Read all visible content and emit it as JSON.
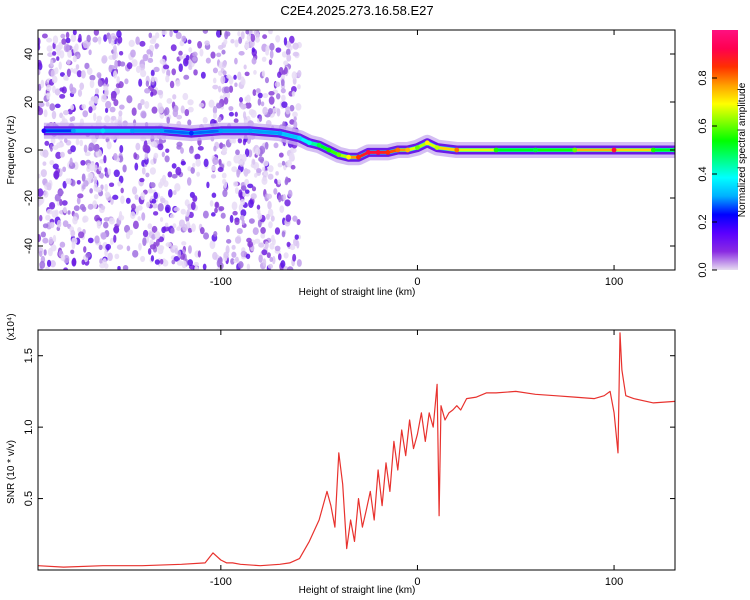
{
  "title": "C2E4.2025.273.16.58.E27",
  "chart_data": [
    {
      "type": "heatmap",
      "name": "spectrogram",
      "title": "C2E4.2025.273.16.58.E27",
      "xlabel": "Height of straight line (km)",
      "ylabel": "Frequency (Hz)",
      "xlim": [
        -193,
        131
      ],
      "ylim": [
        -50,
        50
      ],
      "xticks": [
        -100,
        0,
        100
      ],
      "yticks": [
        -40,
        -20,
        0,
        20,
        40
      ],
      "xtick_labels": [
        "-100",
        "0",
        "100"
      ],
      "ytick_labels": [
        "-40",
        "-20",
        "0",
        "20",
        "40"
      ],
      "trace": {
        "x": [
          -190,
          -175,
          -160,
          -145,
          -130,
          -115,
          -100,
          -85,
          -70,
          -60,
          -55,
          -50,
          -45,
          -40,
          -35,
          -30,
          -25,
          -20,
          -15,
          -10,
          -5,
          0,
          5,
          10,
          20,
          40,
          60,
          80,
          100,
          120,
          131
        ],
        "freq": [
          8,
          8,
          8,
          8,
          8,
          7,
          8,
          8,
          7,
          5,
          3,
          2,
          0,
          -2,
          -3,
          -3,
          -1,
          -1,
          -1,
          0,
          0,
          1,
          3,
          1,
          0,
          0,
          0,
          0,
          0,
          0,
          0
        ],
        "amplitude": [
          0.2,
          0.3,
          0.35,
          0.3,
          0.3,
          0.25,
          0.3,
          0.3,
          0.3,
          0.35,
          0.4,
          0.5,
          0.55,
          0.6,
          0.7,
          0.85,
          0.9,
          0.9,
          0.85,
          0.8,
          0.75,
          0.6,
          0.7,
          0.65,
          0.8,
          0.55,
          0.5,
          0.6,
          0.9,
          0.55,
          0.5
        ]
      },
      "colorbar": {
        "label": "Normalized spectral amplitude",
        "range": [
          0,
          1
        ],
        "ticks": [
          0.0,
          0.2,
          0.4,
          0.6,
          0.8
        ],
        "tick_labels": [
          "0.0",
          "0.2",
          "0.4",
          "0.6",
          "0.8"
        ],
        "colors": [
          "#e6dcf0",
          "#8a2be2",
          "#5a00ff",
          "#0000ff",
          "#00b0ff",
          "#00ffff",
          "#00ff80",
          "#00ff00",
          "#80ff00",
          "#ffff00",
          "#ffa000",
          "#ff3000",
          "#ff0050",
          "#ff1080"
        ]
      }
    },
    {
      "type": "line",
      "name": "snr",
      "title": "",
      "xlabel": "Height of straight line (km)",
      "ylabel": "SNR (10 * v/v)",
      "y_multiplier": "(x10⁴)",
      "xlim": [
        -193,
        131
      ],
      "ylim": [
        0,
        1.68
      ],
      "xticks": [
        -100,
        0,
        100
      ],
      "yticks": [
        0.5,
        1.0,
        1.5
      ],
      "xtick_labels": [
        "-100",
        "0",
        "100"
      ],
      "ytick_labels": [
        "0.5",
        "1.0",
        "1.5"
      ],
      "color": "#e8322e",
      "series": [
        {
          "name": "SNR",
          "x": [
            -193,
            -180,
            -160,
            -140,
            -120,
            -108,
            -104,
            -100,
            -97,
            -94,
            -90,
            -80,
            -70,
            -65,
            -60,
            -55,
            -50,
            -46,
            -44,
            -42,
            -40,
            -38,
            -36,
            -34,
            -32,
            -30,
            -28,
            -26,
            -24,
            -22,
            -20,
            -18,
            -16,
            -14,
            -12,
            -10,
            -8,
            -6,
            -4,
            -2,
            0,
            2,
            4,
            6,
            8,
            10,
            11,
            12,
            14,
            16,
            18,
            20,
            22,
            25,
            30,
            35,
            40,
            50,
            60,
            70,
            80,
            90,
            95,
            98,
            100,
            102,
            103,
            104,
            106,
            110,
            120,
            131
          ],
          "y": [
            0.03,
            0.02,
            0.03,
            0.03,
            0.04,
            0.05,
            0.12,
            0.07,
            0.05,
            0.05,
            0.04,
            0.03,
            0.04,
            0.05,
            0.08,
            0.2,
            0.35,
            0.55,
            0.45,
            0.3,
            0.82,
            0.6,
            0.15,
            0.35,
            0.2,
            0.5,
            0.3,
            0.42,
            0.55,
            0.35,
            0.7,
            0.45,
            0.75,
            0.55,
            0.9,
            0.7,
            0.98,
            0.8,
            1.05,
            0.85,
            0.95,
            1.1,
            0.9,
            1.1,
            1.0,
            1.3,
            0.38,
            1.15,
            1.05,
            1.1,
            1.12,
            1.15,
            1.12,
            1.2,
            1.21,
            1.24,
            1.24,
            1.25,
            1.23,
            1.22,
            1.21,
            1.2,
            1.22,
            1.25,
            1.1,
            0.82,
            1.66,
            1.4,
            1.22,
            1.2,
            1.17,
            1.18
          ]
        }
      ]
    }
  ]
}
